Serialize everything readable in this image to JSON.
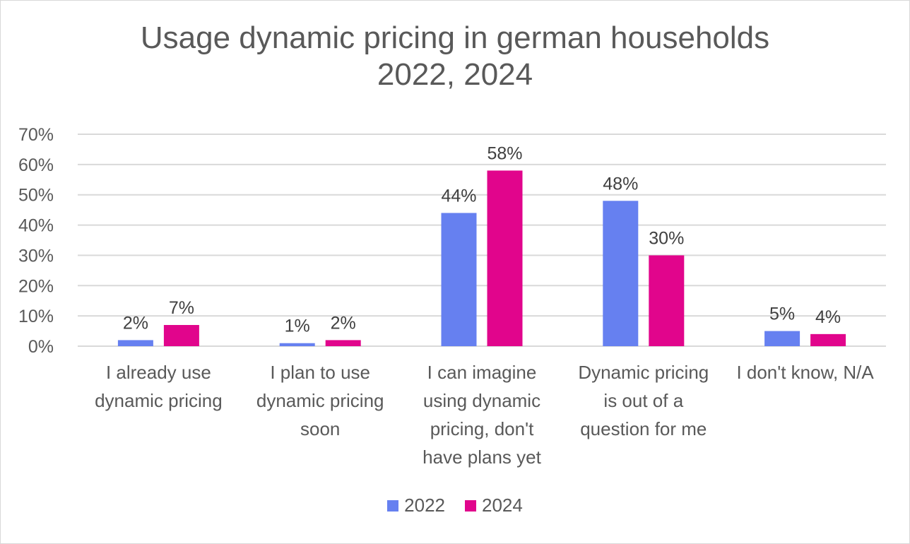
{
  "title_line1": "Usage dynamic pricing in german households",
  "title_line2": "2022, 2024",
  "chart_data": {
    "type": "bar",
    "title": "Usage dynamic pricing in german households 2022, 2024",
    "xlabel": "",
    "ylabel": "",
    "ylim": [
      0,
      70
    ],
    "y_ticks": [
      "0%",
      "10%",
      "20%",
      "30%",
      "40%",
      "50%",
      "60%",
      "70%"
    ],
    "y_tick_values": [
      0,
      10,
      20,
      30,
      40,
      50,
      60,
      70
    ],
    "grid": true,
    "legend_placement": "bottom",
    "categories": [
      [
        "I already use",
        "dynamic pricing"
      ],
      [
        "I plan to use",
        "dynamic pricing",
        "soon"
      ],
      [
        "I can imagine",
        "using dynamic",
        "pricing, don't",
        "have plans yet"
      ],
      [
        "Dynamic pricing",
        "is out of a",
        "question for me"
      ],
      [
        "I don't know, N/A"
      ]
    ],
    "series": [
      {
        "name": "2022",
        "color": "#6680f0",
        "values": [
          2,
          1,
          44,
          48,
          5
        ],
        "labels": [
          "2%",
          "1%",
          "44%",
          "48%",
          "5%"
        ]
      },
      {
        "name": "2024",
        "color": "#e1058c",
        "values": [
          7,
          2,
          58,
          30,
          4
        ],
        "labels": [
          "7%",
          "2%",
          "58%",
          "30%",
          "4%"
        ]
      }
    ]
  }
}
